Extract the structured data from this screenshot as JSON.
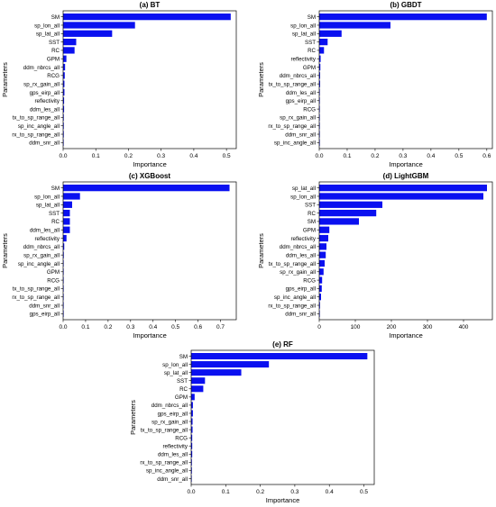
{
  "colors": {
    "bar": "#0a10f0",
    "axis": "#000000",
    "background": "#ffffff"
  },
  "chart_data": [
    {
      "type": "bar",
      "orientation": "horizontal",
      "title": "(a) BT",
      "xlabel": "Importance",
      "ylabel": "Parameters",
      "xlim": [
        0,
        0.53
      ],
      "xticks": [
        "0.0",
        "0.1",
        "0.2",
        "0.3",
        "0.4",
        "0.5"
      ],
      "categories": [
        "SM",
        "sp_lon_all",
        "sp_lat_all",
        "SST",
        "RC",
        "GPM",
        "ddm_nbrcs_all",
        "RCG",
        "sp_rx_gain_all",
        "gps_eirp_all",
        "reflectivity",
        "ddm_les_all",
        "tx_to_sp_range_all",
        "sp_inc_angle_all",
        "rx_to_sp_range_all",
        "ddm_snr_all"
      ],
      "values": [
        0.513,
        0.22,
        0.15,
        0.04,
        0.035,
        0.01,
        0.006,
        0.005,
        0.004,
        0.004,
        0.003,
        0.003,
        0.002,
        0.002,
        0.002,
        0.001
      ]
    },
    {
      "type": "bar",
      "orientation": "horizontal",
      "title": "(b) GBDT",
      "xlabel": "Importance",
      "ylabel": "Parameters",
      "xlim": [
        0,
        0.62
      ],
      "xticks": [
        "0.0",
        "0.1",
        "0.2",
        "0.3",
        "0.4",
        "0.5",
        "0.6"
      ],
      "categories": [
        "SM",
        "sp_lon_all",
        "sp_lat_all",
        "SST",
        "RC",
        "reflectivity",
        "GPM",
        "ddm_nbrcs_all",
        "tx_to_sp_range_all",
        "ddm_les_all",
        "gps_eirp_all",
        "RCG",
        "sp_rx_gain_all",
        "rx_to_sp_range_all",
        "ddm_snr_all",
        "sp_inc_angle_all"
      ],
      "values": [
        0.6,
        0.255,
        0.08,
        0.03,
        0.017,
        0.005,
        0.004,
        0.003,
        0.003,
        0.002,
        0.002,
        0.002,
        0.001,
        0.001,
        0.001,
        0.001
      ]
    },
    {
      "type": "bar",
      "orientation": "horizontal",
      "title": "(c) XGBoost",
      "xlabel": "Importance",
      "ylabel": "Parameters",
      "xlim": [
        0,
        0.77
      ],
      "xticks": [
        "0.0",
        "0.1",
        "0.2",
        "0.3",
        "0.4",
        "0.5",
        "0.6",
        "0.7"
      ],
      "categories": [
        "SM",
        "sp_lon_all",
        "sp_lat_all",
        "SST",
        "RC",
        "ddm_les_all",
        "reflectivity",
        "ddm_nbrcs_all",
        "sp_rx_gain_all",
        "sp_inc_angle_all",
        "GPM",
        "RCG",
        "tx_to_sp_range_all",
        "rx_to_sp_range_all",
        "ddm_snr_all",
        "gps_eirp_all"
      ],
      "values": [
        0.74,
        0.075,
        0.04,
        0.03,
        0.03,
        0.03,
        0.015,
        0.005,
        0.003,
        0.002,
        0.002,
        0.002,
        0.001,
        0.001,
        0.001,
        0.001
      ]
    },
    {
      "type": "bar",
      "orientation": "horizontal",
      "title": "(d) LightGBM",
      "xlabel": "Importance",
      "ylabel": "Parameters",
      "xlim": [
        0,
        480
      ],
      "xticks": [
        "0",
        "100",
        "200",
        "300",
        "400"
      ],
      "categories": [
        "sp_lat_all",
        "sp_lon_all",
        "SST",
        "RC",
        "SM",
        "GPM",
        "reflectivity",
        "ddm_nbrcs_all",
        "ddm_les_all",
        "tx_to_sp_range_all",
        "sp_rx_gain_all",
        "RCG",
        "gps_eirp_all",
        "sp_inc_angle_all",
        "rx_to_sp_range_all",
        "ddm_snr_all"
      ],
      "values": [
        465,
        455,
        175,
        158,
        110,
        28,
        25,
        20,
        18,
        15,
        12,
        8,
        7,
        5,
        2,
        1
      ]
    },
    {
      "type": "bar",
      "orientation": "horizontal",
      "title": "(e) RF",
      "xlabel": "Importance",
      "ylabel": "Parameters",
      "xlim": [
        0,
        0.53
      ],
      "xticks": [
        "0.0",
        "0.1",
        "0.2",
        "0.3",
        "0.4",
        "0.5"
      ],
      "categories": [
        "SM",
        "sp_lon_all",
        "sp_lat_all",
        "SST",
        "RC",
        "GPM",
        "ddm_nbrcs_all",
        "gps_eirp_all",
        "sp_rx_gain_all",
        "tx_to_sp_range_all",
        "RCG",
        "reflectivity",
        "ddm_les_all",
        "rx_to_sp_range_all",
        "sp_inc_angle_all",
        "ddm_snr_all"
      ],
      "values": [
        0.51,
        0.225,
        0.145,
        0.04,
        0.035,
        0.01,
        0.005,
        0.005,
        0.004,
        0.004,
        0.003,
        0.003,
        0.003,
        0.002,
        0.002,
        0.001
      ]
    }
  ]
}
